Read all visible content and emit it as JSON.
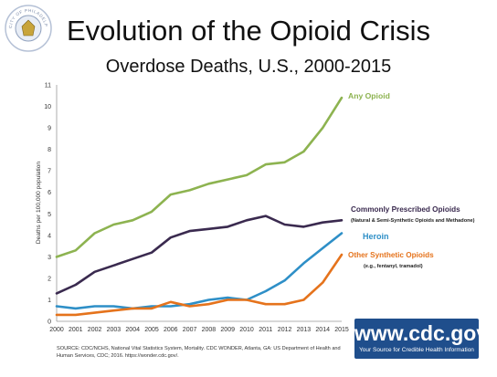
{
  "header": {
    "title": "Evolution of the Opioid Crisis",
    "subtitle": "Overdose Deaths, U.S., 2000-2015",
    "seal_text": "CITY OF PHILADELPHIA · LIBERTY · AND · FREEDOM"
  },
  "source_note": "SOURCE: CDC/NCHS, National Vital Statistics System, Mortality. CDC WONDER, Atlanta, GA: US Department of Health and Human Services, CDC; 2016. https://wonder.cdc.gov/.",
  "logo": {
    "url": "www.cdc.gov",
    "tagline": "Your Source for Credible Health Information",
    "color": "#1f4e8c"
  },
  "chart_data": {
    "type": "line",
    "title": "",
    "xlabel": "",
    "ylabel": "Deaths per 100,000 population",
    "x": [
      2000,
      2001,
      2002,
      2003,
      2004,
      2005,
      2006,
      2007,
      2008,
      2009,
      2010,
      2011,
      2012,
      2013,
      2014,
      2015
    ],
    "xlim": [
      2000,
      2015
    ],
    "ylim": [
      0,
      11
    ],
    "yticks": [
      0,
      1,
      2,
      3,
      4,
      5,
      6,
      7,
      8,
      9,
      10,
      11
    ],
    "grid": false,
    "legend": "inline labels at line ends",
    "series": [
      {
        "name": "Any Opioid",
        "sublabel": "",
        "color": "#8db350",
        "values": [
          3.0,
          3.3,
          4.1,
          4.5,
          4.7,
          5.1,
          5.9,
          6.1,
          6.4,
          6.6,
          6.8,
          7.3,
          7.4,
          7.9,
          9.0,
          10.4
        ]
      },
      {
        "name": "Commonly Prescribed Opioids",
        "sublabel": "(Natural & Semi-Synthetic Opioids and Methadone)",
        "color": "#3a2a4f",
        "values": [
          1.3,
          1.7,
          2.3,
          2.6,
          2.9,
          3.2,
          3.9,
          4.2,
          4.3,
          4.4,
          4.7,
          4.9,
          4.5,
          4.4,
          4.6,
          4.7
        ]
      },
      {
        "name": "Heroin",
        "sublabel": "",
        "color": "#2e8fc7",
        "values": [
          0.7,
          0.6,
          0.7,
          0.7,
          0.6,
          0.7,
          0.7,
          0.8,
          1.0,
          1.1,
          1.0,
          1.4,
          1.9,
          2.7,
          3.4,
          4.1
        ]
      },
      {
        "name": "Other Synthetic Opioids",
        "sublabel": "(e.g., fentanyl, tramadol)",
        "color": "#e5731c",
        "values": [
          0.3,
          0.3,
          0.4,
          0.5,
          0.6,
          0.6,
          0.9,
          0.7,
          0.8,
          1.0,
          1.0,
          0.8,
          0.8,
          1.0,
          1.8,
          3.1
        ]
      }
    ]
  }
}
